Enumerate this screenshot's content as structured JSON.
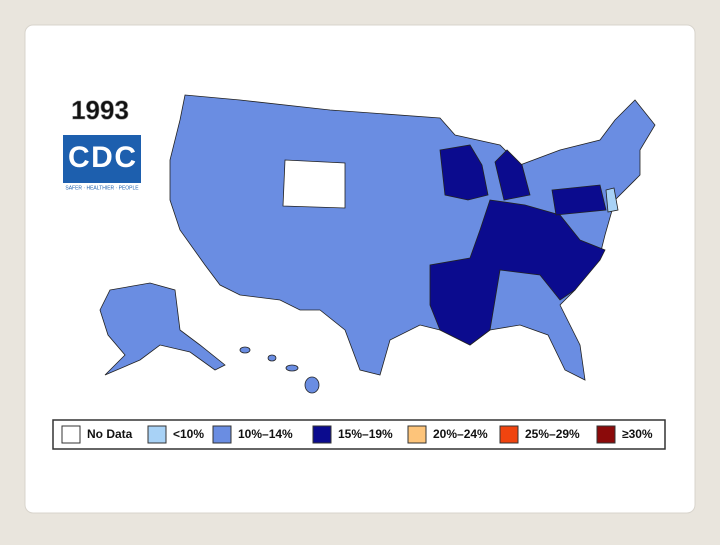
{
  "title": "1993",
  "logo": {
    "text": "CDC",
    "tagline": "SAFER · HEALTHIER · PEOPLE",
    "color": "#1d5fae"
  },
  "legend": [
    {
      "label": "No Data",
      "color": "#ffffff"
    },
    {
      "label": "<10%",
      "color": "#a8d2f6"
    },
    {
      "label": "10%–14%",
      "color": "#6a8de2"
    },
    {
      "label": "15%–19%",
      "color": "#0b0b8e"
    },
    {
      "label": "20%–24%",
      "color": "#fdc47a"
    },
    {
      "label": "25%–29%",
      "color": "#f0440f"
    },
    {
      "label": "≥30%",
      "color": "#8b0a0a"
    }
  ]
}
